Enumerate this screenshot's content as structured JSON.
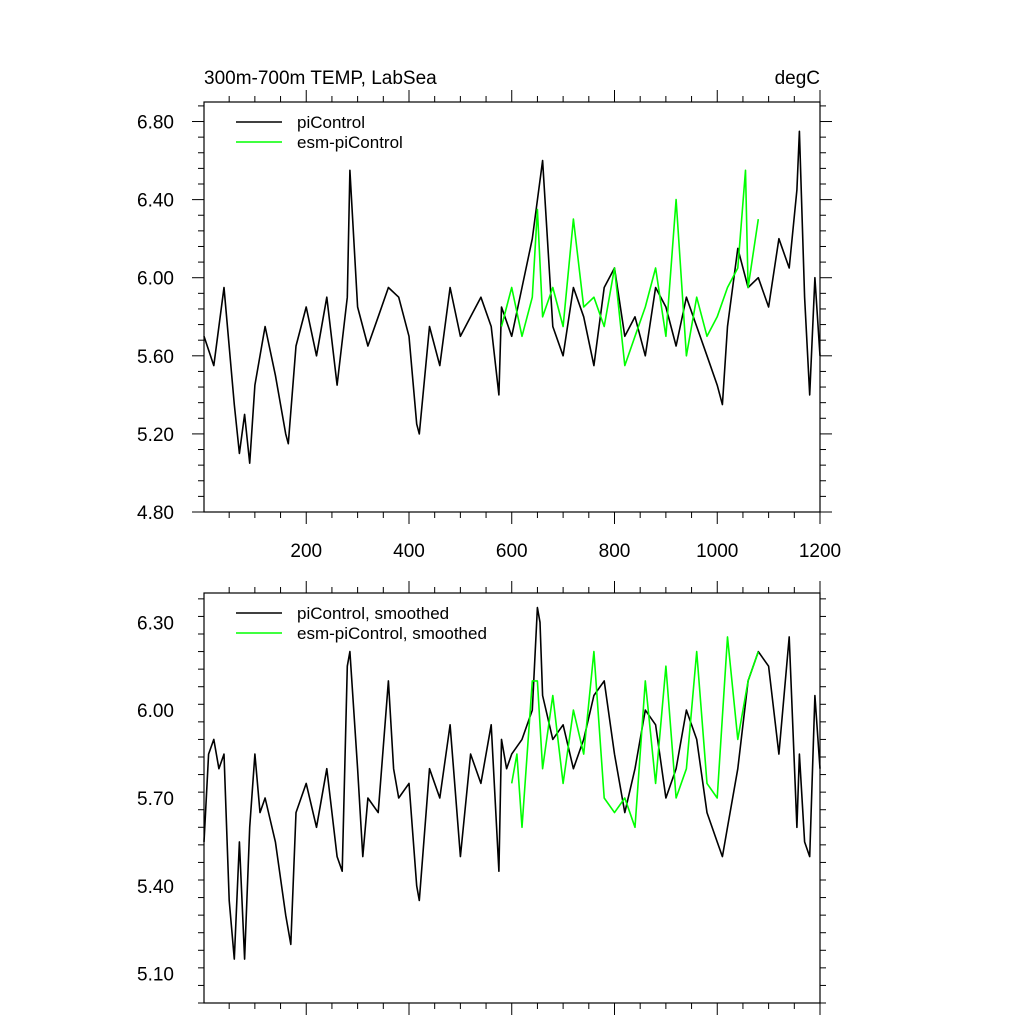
{
  "chart_data": [
    {
      "type": "line",
      "title": "300m-700m TEMP, LabSea",
      "units": "degC",
      "xlim": [
        1,
        1200
      ],
      "ylim": [
        4.8,
        6.9
      ],
      "xticks": [
        200,
        400,
        600,
        800,
        1000,
        1200
      ],
      "xtick_labels": [
        "200",
        "400",
        "600",
        "800",
        "1000",
        "1200"
      ],
      "yticks": [
        4.8,
        5.2,
        5.6,
        6.0,
        6.4,
        6.8
      ],
      "ytick_labels": [
        "4.80",
        "5.20",
        "5.60",
        "6.00",
        "6.40",
        "6.80"
      ],
      "series": [
        {
          "name": "piControl",
          "color": "#000000",
          "x": [
            1,
            20,
            40,
            60,
            70,
            80,
            90,
            100,
            120,
            140,
            160,
            165,
            180,
            200,
            220,
            240,
            260,
            280,
            285,
            300,
            320,
            340,
            360,
            380,
            400,
            415,
            420,
            440,
            460,
            480,
            500,
            520,
            540,
            560,
            575,
            580,
            600,
            620,
            640,
            660,
            680,
            700,
            720,
            740,
            760,
            780,
            800,
            820,
            840,
            860,
            880,
            900,
            920,
            940,
            960,
            980,
            1000,
            1010,
            1020,
            1040,
            1060,
            1080,
            1100,
            1120,
            1140,
            1155,
            1160,
            1170,
            1180,
            1190,
            1200
          ],
          "values": [
            5.7,
            5.55,
            5.95,
            5.35,
            5.1,
            5.3,
            5.05,
            5.45,
            5.75,
            5.5,
            5.2,
            5.15,
            5.65,
            5.85,
            5.6,
            5.9,
            5.45,
            5.9,
            6.55,
            5.85,
            5.65,
            5.8,
            5.95,
            5.9,
            5.7,
            5.25,
            5.2,
            5.75,
            5.55,
            5.95,
            5.7,
            5.8,
            5.9,
            5.75,
            5.4,
            5.85,
            5.7,
            5.95,
            6.2,
            6.6,
            5.75,
            5.6,
            5.95,
            5.8,
            5.55,
            5.95,
            6.05,
            5.7,
            5.8,
            5.6,
            5.95,
            5.85,
            5.65,
            5.9,
            5.75,
            5.6,
            5.45,
            5.35,
            5.75,
            6.15,
            5.95,
            6.0,
            5.85,
            6.2,
            6.05,
            6.45,
            6.75,
            5.9,
            5.4,
            6.0,
            5.6
          ]
        },
        {
          "name": "esm-piControl",
          "color": "#00ff00",
          "x": [
            580,
            600,
            620,
            640,
            650,
            660,
            680,
            700,
            720,
            740,
            760,
            780,
            800,
            820,
            840,
            860,
            880,
            900,
            920,
            940,
            960,
            980,
            1000,
            1020,
            1040,
            1055,
            1060,
            1080
          ],
          "values": [
            5.75,
            5.95,
            5.7,
            5.9,
            6.35,
            5.8,
            5.95,
            5.75,
            6.3,
            5.85,
            5.9,
            5.75,
            6.05,
            5.55,
            5.7,
            5.85,
            6.05,
            5.7,
            6.4,
            5.6,
            5.9,
            5.7,
            5.8,
            5.95,
            6.05,
            6.55,
            5.95,
            6.3
          ]
        }
      ]
    },
    {
      "type": "line",
      "title": "",
      "xlim": [
        1,
        1200
      ],
      "ylim": [
        5.0,
        6.4
      ],
      "yticks": [
        5.1,
        5.4,
        5.7,
        6.0,
        6.3
      ],
      "ytick_labels": [
        "5.10",
        "5.40",
        "5.70",
        "6.00",
        "6.30"
      ],
      "series": [
        {
          "name": "piControl, smoothed",
          "color": "#000000",
          "x": [
            1,
            10,
            20,
            30,
            40,
            50,
            60,
            70,
            80,
            90,
            100,
            110,
            120,
            140,
            160,
            170,
            180,
            190,
            200,
            220,
            240,
            260,
            270,
            280,
            285,
            300,
            310,
            320,
            340,
            360,
            370,
            380,
            400,
            415,
            420,
            440,
            460,
            480,
            500,
            520,
            540,
            560,
            575,
            580,
            590,
            600,
            620,
            640,
            650,
            655,
            660,
            680,
            700,
            720,
            740,
            760,
            780,
            800,
            820,
            840,
            860,
            880,
            900,
            920,
            940,
            960,
            980,
            1000,
            1010,
            1020,
            1040,
            1060,
            1080,
            1100,
            1120,
            1140,
            1155,
            1160,
            1170,
            1180,
            1190,
            1200
          ],
          "values": [
            5.55,
            5.85,
            5.9,
            5.8,
            5.85,
            5.35,
            5.15,
            5.55,
            5.15,
            5.6,
            5.85,
            5.65,
            5.7,
            5.55,
            5.3,
            5.2,
            5.65,
            5.7,
            5.75,
            5.6,
            5.8,
            5.5,
            5.45,
            6.15,
            6.2,
            5.8,
            5.5,
            5.7,
            5.65,
            6.1,
            5.8,
            5.7,
            5.75,
            5.4,
            5.35,
            5.8,
            5.7,
            5.95,
            5.5,
            5.85,
            5.75,
            5.95,
            5.45,
            5.9,
            5.8,
            5.85,
            5.9,
            6.0,
            6.35,
            6.3,
            6.05,
            5.9,
            5.95,
            5.8,
            5.9,
            6.05,
            6.1,
            5.85,
            5.65,
            5.8,
            6.0,
            5.95,
            5.7,
            5.8,
            6.0,
            5.9,
            5.65,
            5.55,
            5.5,
            5.6,
            5.8,
            6.1,
            6.2,
            6.15,
            5.85,
            6.25,
            5.6,
            5.85,
            5.55,
            5.5,
            6.05,
            5.8
          ]
        },
        {
          "name": "esm-piControl, smoothed",
          "color": "#00ff00",
          "x": [
            600,
            610,
            620,
            640,
            650,
            660,
            680,
            700,
            720,
            740,
            760,
            780,
            800,
            820,
            840,
            860,
            880,
            900,
            920,
            940,
            960,
            980,
            1000,
            1020,
            1040,
            1060,
            1080
          ],
          "values": [
            5.75,
            5.85,
            5.6,
            6.1,
            6.1,
            5.8,
            6.05,
            5.75,
            6.0,
            5.85,
            6.2,
            5.7,
            5.65,
            5.7,
            5.6,
            6.1,
            5.75,
            6.15,
            5.7,
            5.8,
            6.2,
            5.75,
            5.7,
            6.25,
            5.9,
            6.1,
            6.2
          ]
        }
      ]
    }
  ]
}
